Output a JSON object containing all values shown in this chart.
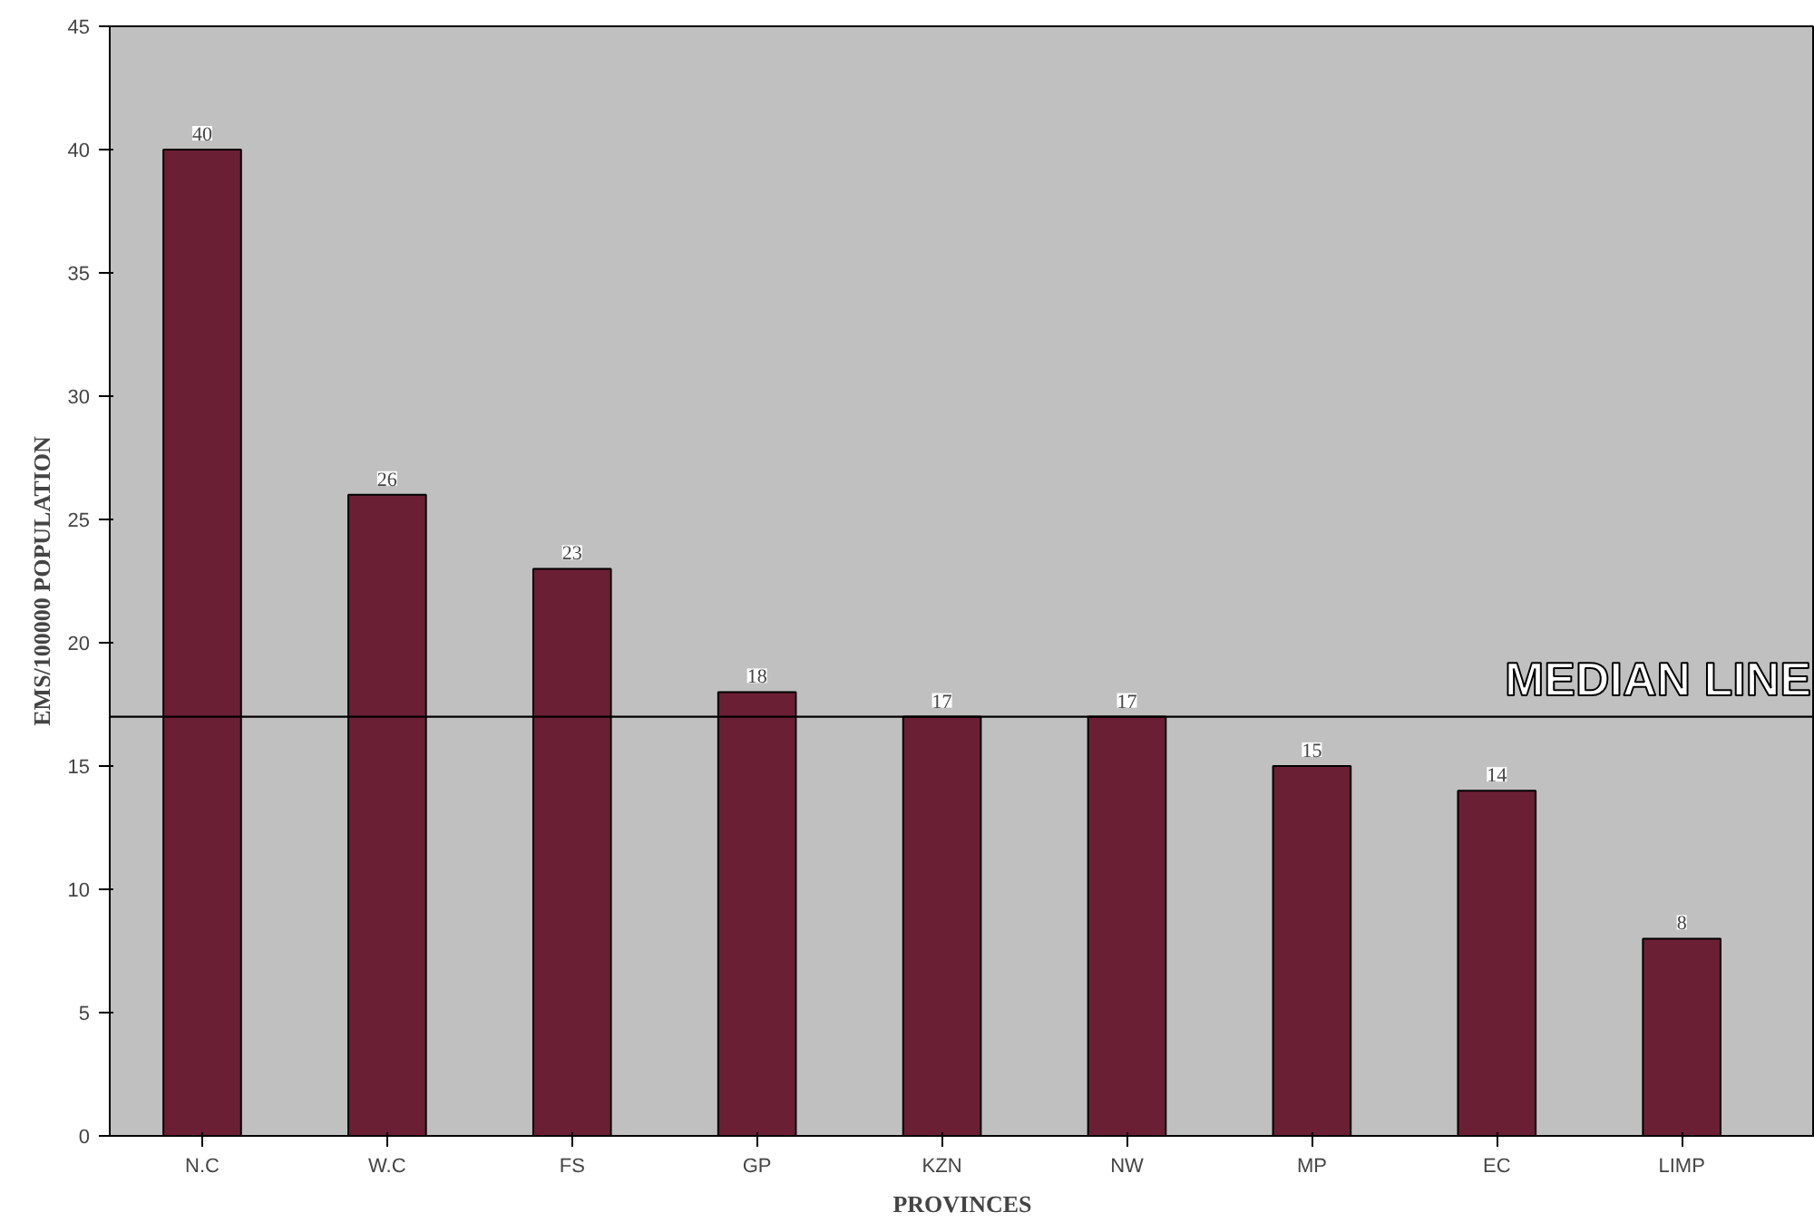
{
  "chart_data": {
    "type": "bar",
    "xlabel": "PROVINCES",
    "ylabel": "EMS/100000 POPULATION",
    "categories": [
      "N.C",
      "W.C",
      "FS",
      "GP",
      "KZN",
      "NW",
      "MP",
      "EC",
      "LIMP"
    ],
    "values": [
      40,
      26,
      23,
      18,
      17,
      17,
      15,
      14,
      8
    ],
    "color": "#6b1f35",
    "ylim": [
      0,
      45
    ],
    "yticks": [
      0,
      5,
      10,
      15,
      20,
      25,
      30,
      35,
      40,
      45
    ],
    "grid": false,
    "data_labels": true,
    "ref_lines": [
      {
        "axis": "y",
        "value": 17,
        "label": "MEDIAN LINE",
        "color": "#000000"
      }
    ]
  }
}
